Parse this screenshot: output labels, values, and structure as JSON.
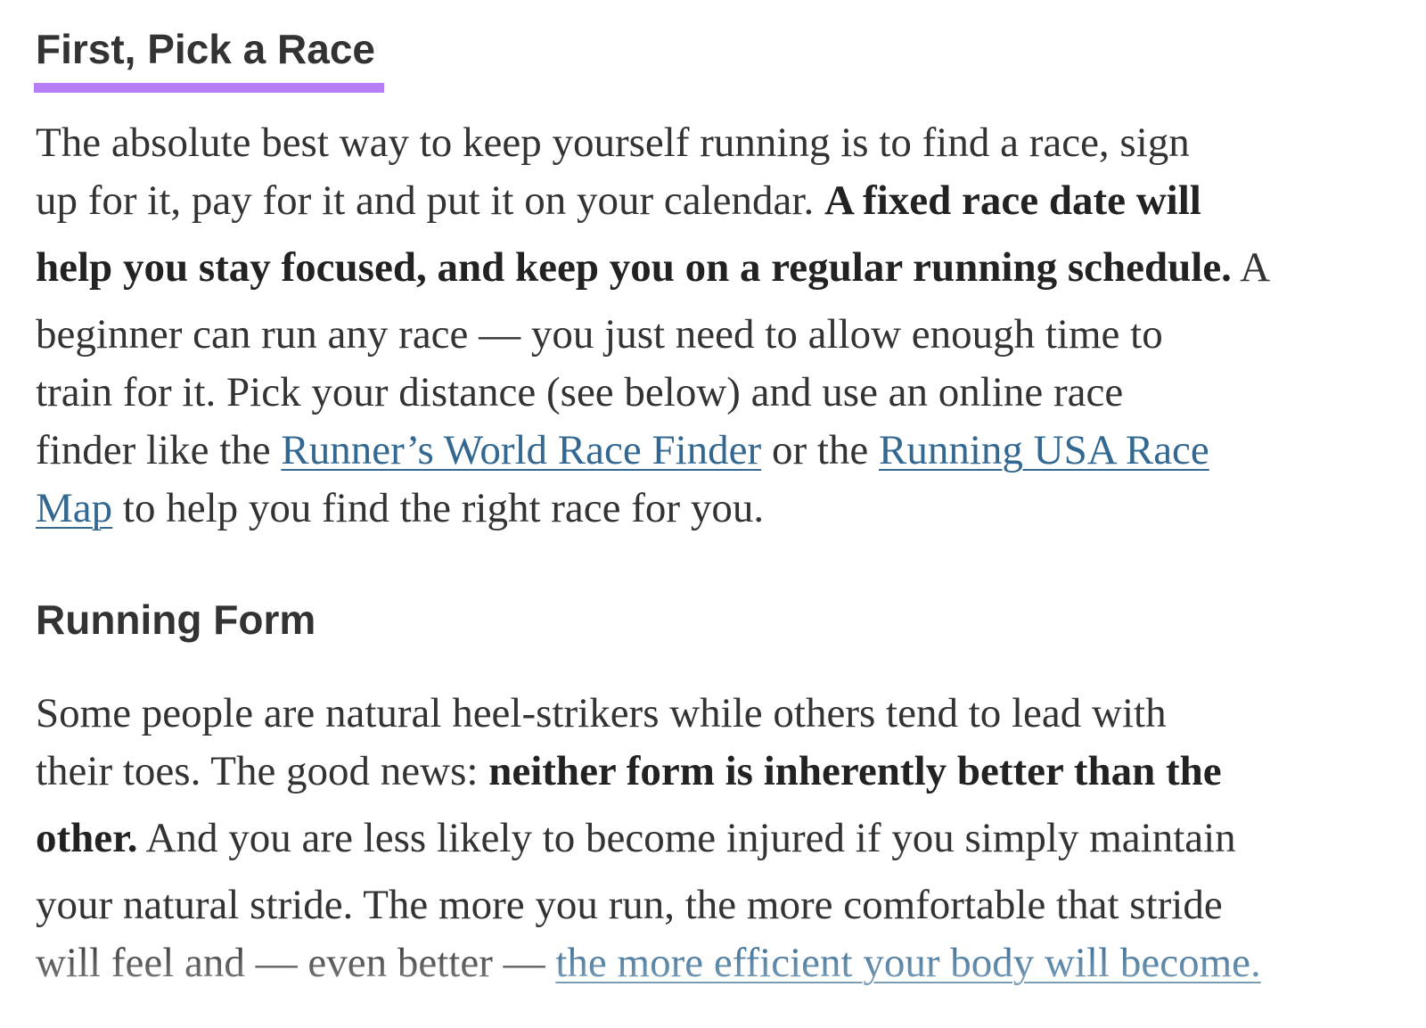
{
  "accent_color": "#b77ff6",
  "link_color": "#326891",
  "section1": {
    "heading": "First, Pick a Race",
    "lines": [
      [
        {
          "t": "The absolute best way to keep yourself running is to find a race, sign"
        }
      ],
      [
        {
          "t": "up for it, pay for it and put it on your calendar. "
        },
        {
          "t": "A fixed race date will",
          "b": true
        }
      ],
      [
        {
          "t": "help you stay focused, and keep you on a regular running schedule.",
          "b": true
        },
        {
          "t": " A"
        }
      ],
      [
        {
          "t": "beginner can run any race — you just need to allow enough time to"
        }
      ],
      [
        {
          "t": "train for it. Pick your distance (see below) and use an online race"
        }
      ],
      [
        {
          "t": "finder like the "
        },
        {
          "t": "Runner’s World Race Finder",
          "link": true
        },
        {
          "t": " or the "
        },
        {
          "t": "Running USA Race",
          "link": true
        }
      ],
      [
        {
          "t": "Map",
          "link": true
        },
        {
          "t": " to help you find the right race for you."
        }
      ]
    ]
  },
  "section2": {
    "heading": "Running Form",
    "lines": [
      [
        {
          "t": "Some people are natural heel-strikers while others tend to lead with"
        }
      ],
      [
        {
          "t": "their toes. The good news: "
        },
        {
          "t": "neither form is inherently better than the",
          "b": true
        }
      ],
      [
        {
          "t": "other.",
          "b": true
        },
        {
          "t": " And you are less likely to become injured if you simply maintain"
        }
      ],
      [
        {
          "t": "your natural stride. The more you run, the more comfortable that stride"
        }
      ],
      [
        {
          "t": "will feel and — even better — "
        },
        {
          "t": "the more efficient your body will become.",
          "link": true
        }
      ]
    ]
  }
}
